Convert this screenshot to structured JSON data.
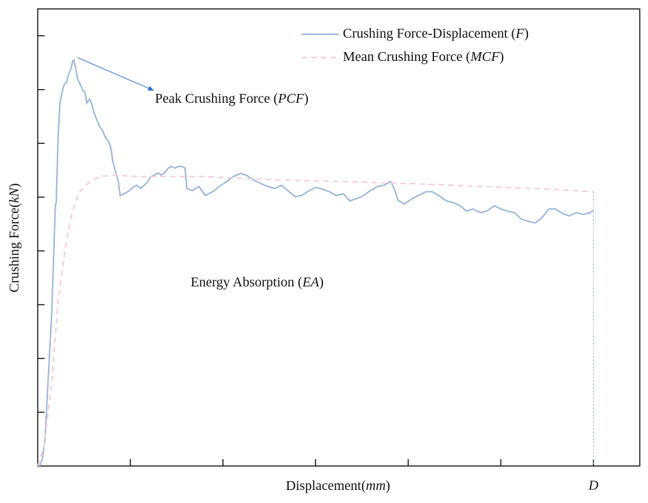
{
  "chart_data": {
    "type": "line",
    "xlabel": "Displacement(mm)",
    "ylabel": "Crushing Force(kN)",
    "xlim": [
      0,
      6.5
    ],
    "ylim": [
      0,
      8.5
    ],
    "xticks": [
      1,
      2,
      3,
      4,
      5,
      {
        "value": 6,
        "label": "D"
      }
    ],
    "yticks": [
      1,
      2,
      3,
      4,
      5,
      6,
      7,
      8
    ],
    "legend": "upper right",
    "annotations": [
      {
        "text": "Peak Crushing Force (PCF)"
      },
      {
        "text": "Energy Absorption (EA)"
      }
    ],
    "series": [
      {
        "name": "Crushing Force-Displacement (F)",
        "color": "#98b4dc",
        "dash": false,
        "x": [
          0.02,
          0.05,
          0.08,
          0.11,
          0.15,
          0.19,
          0.2,
          0.22,
          0.24,
          0.27,
          0.29,
          0.31,
          0.33,
          0.36,
          0.38,
          0.39,
          0.41,
          0.43,
          0.45,
          0.48,
          0.51,
          0.53,
          0.56,
          0.58,
          0.61,
          0.64,
          0.67,
          0.7,
          0.73,
          0.76,
          0.79,
          0.81,
          0.84,
          0.87,
          0.89,
          0.94,
          0.99,
          1.04,
          1.07,
          1.11,
          1.15,
          1.19,
          1.22,
          1.26,
          1.3,
          1.33,
          1.37,
          1.41,
          1.44,
          1.48,
          1.52,
          1.56,
          1.59,
          1.61,
          1.67,
          1.74,
          1.81,
          1.89,
          1.96,
          2.04,
          2.11,
          2.19,
          2.26,
          2.33,
          2.41,
          2.48,
          2.56,
          2.63,
          2.7,
          2.78,
          2.85,
          2.93,
          3.0,
          3.07,
          3.15,
          3.22,
          3.3,
          3.37,
          3.44,
          3.52,
          3.59,
          3.67,
          3.74,
          3.81,
          3.85,
          3.89,
          3.96,
          4.04,
          4.11,
          4.19,
          4.26,
          4.33,
          4.41,
          4.48,
          4.56,
          4.63,
          4.7,
          4.78,
          4.85,
          4.93,
          5.0,
          5.07,
          5.15,
          5.22,
          5.3,
          5.37,
          5.44,
          5.52,
          5.59,
          5.67,
          5.74,
          5.81,
          5.89,
          5.96,
          6.0
        ],
        "values": [
          0,
          0.13,
          0.51,
          1.53,
          2.8,
          4.84,
          4.9,
          6.11,
          6.75,
          7.01,
          7.11,
          7.13,
          7.26,
          7.39,
          7.54,
          7.55,
          7.39,
          7.2,
          7.13,
          7.01,
          6.94,
          6.75,
          6.82,
          6.75,
          6.56,
          6.43,
          6.31,
          6.24,
          6.11,
          6.05,
          5.92,
          5.67,
          5.48,
          5.29,
          5.03,
          5.07,
          5.12,
          5.2,
          5.22,
          5.16,
          5.22,
          5.29,
          5.38,
          5.41,
          5.45,
          5.41,
          5.45,
          5.54,
          5.57,
          5.54,
          5.57,
          5.57,
          5.54,
          5.16,
          5.12,
          5.2,
          5.03,
          5.1,
          5.2,
          5.29,
          5.38,
          5.44,
          5.4,
          5.32,
          5.25,
          5.2,
          5.16,
          5.22,
          5.12,
          5.01,
          5.03,
          5.12,
          5.18,
          5.15,
          5.1,
          5.03,
          5.06,
          4.93,
          4.97,
          5.03,
          5.12,
          5.2,
          5.22,
          5.29,
          5.16,
          4.94,
          4.87,
          4.97,
          5.03,
          5.1,
          5.1,
          5.03,
          4.93,
          4.9,
          4.84,
          4.74,
          4.78,
          4.71,
          4.74,
          4.84,
          4.78,
          4.74,
          4.71,
          4.59,
          4.55,
          4.52,
          4.61,
          4.78,
          4.78,
          4.69,
          4.65,
          4.71,
          4.68,
          4.71,
          4.75
        ]
      },
      {
        "name": "Mean Crushing Force (MCF)",
        "color": "#f8c8dc",
        "dash": true,
        "x": [
          0,
          0.07,
          0.15,
          0.22,
          0.3,
          0.37,
          0.44,
          0.52,
          0.59,
          0.7,
          0.85,
          1.07,
          1.81,
          2.56,
          3.3,
          4.04,
          4.78,
          5.52,
          6.0
        ],
        "values": [
          0,
          0.38,
          1.53,
          3.06,
          4.08,
          4.71,
          5.07,
          5.22,
          5.32,
          5.39,
          5.41,
          5.38,
          5.38,
          5.32,
          5.29,
          5.25,
          5.2,
          5.15,
          5.1
        ]
      }
    ]
  }
}
